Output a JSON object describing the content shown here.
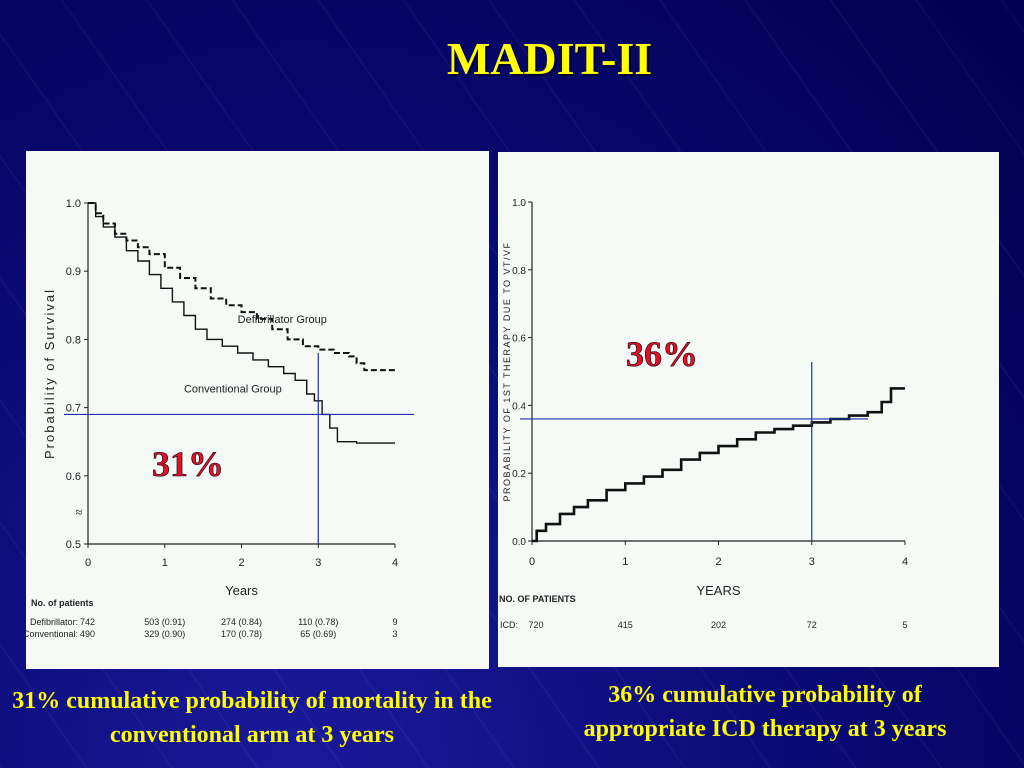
{
  "slide": {
    "title": "MADIT-II",
    "caption_left": "31% cumulative probability of mortality in the conventional arm at 3 years",
    "caption_right": "36% cumulative probability of appropriate ICD therapy at 3 years"
  },
  "colors": {
    "background": "#0a0a6e",
    "title": "#ffff00",
    "highlight_pct": "#e0102a",
    "ref_line": "#1f2fb0"
  },
  "chart_data": [
    {
      "type": "line",
      "title": "",
      "xlabel": "Years",
      "ylabel": "Probability of Survival",
      "xlim": [
        0,
        4
      ],
      "ylim": [
        0.5,
        1.0
      ],
      "x_ticks": [
        "0",
        "1",
        "2",
        "3",
        "4"
      ],
      "y_ticks": [
        "0.5",
        "0.6",
        "0.7",
        "0.8",
        "0.9",
        "1.0"
      ],
      "axis_break_symbol": "≈",
      "series": [
        {
          "name": "Defibrillator Group",
          "style": "dashed",
          "x": [
            0,
            0.1,
            0.2,
            0.35,
            0.5,
            0.65,
            0.8,
            1.0,
            1.2,
            1.4,
            1.6,
            1.8,
            2.0,
            2.2,
            2.4,
            2.6,
            2.8,
            3.0,
            3.2,
            3.4,
            3.5,
            3.6,
            3.8,
            4.0
          ],
          "y": [
            1.0,
            0.985,
            0.97,
            0.955,
            0.945,
            0.935,
            0.925,
            0.905,
            0.89,
            0.875,
            0.86,
            0.85,
            0.84,
            0.83,
            0.815,
            0.8,
            0.79,
            0.785,
            0.78,
            0.775,
            0.765,
            0.755,
            0.755,
            0.755
          ]
        },
        {
          "name": "Conventional Group",
          "style": "solid",
          "x": [
            0,
            0.1,
            0.2,
            0.35,
            0.5,
            0.65,
            0.8,
            0.95,
            1.1,
            1.25,
            1.4,
            1.55,
            1.75,
            1.95,
            2.15,
            2.35,
            2.55,
            2.7,
            2.85,
            2.95,
            3.05,
            3.15,
            3.25,
            3.5,
            4.0
          ],
          "y": [
            1.0,
            0.98,
            0.965,
            0.95,
            0.93,
            0.915,
            0.895,
            0.875,
            0.855,
            0.835,
            0.815,
            0.8,
            0.79,
            0.78,
            0.77,
            0.76,
            0.75,
            0.74,
            0.72,
            0.71,
            0.69,
            0.67,
            0.65,
            0.648,
            0.648
          ]
        }
      ],
      "reference_lines": {
        "x": 3,
        "y": 0.69
      },
      "highlight_label": "31%",
      "at_risk": {
        "title": "No. of patients",
        "rows": [
          {
            "label": "Defibrillator:",
            "values": [
              "742",
              "503  (0.91)",
              "274  (0.84)",
              "110  (0.78)",
              "9"
            ]
          },
          {
            "label": "Conventional:",
            "values": [
              "490",
              "329  (0.90)",
              "170  (0.78)",
              "65  (0.69)",
              "3"
            ]
          }
        ]
      }
    },
    {
      "type": "line",
      "title": "",
      "xlabel": "YEARS",
      "ylabel": "PROBABILITY OF 1ST THERAPY DUE TO VT/VF",
      "xlim": [
        0,
        4
      ],
      "ylim": [
        0.0,
        1.0
      ],
      "x_ticks": [
        "0",
        "1",
        "2",
        "3",
        "4"
      ],
      "y_ticks": [
        "0.0",
        "0.2",
        "0.4",
        "0.6",
        "0.8",
        "1.0"
      ],
      "series": [
        {
          "name": "ICD",
          "style": "solid",
          "x": [
            0,
            0.05,
            0.15,
            0.3,
            0.45,
            0.6,
            0.8,
            1.0,
            1.2,
            1.4,
            1.6,
            1.8,
            2.0,
            2.2,
            2.4,
            2.6,
            2.8,
            3.0,
            3.2,
            3.4,
            3.6,
            3.75,
            3.85,
            4.0
          ],
          "y": [
            0.0,
            0.03,
            0.05,
            0.08,
            0.1,
            0.12,
            0.15,
            0.17,
            0.19,
            0.21,
            0.24,
            0.26,
            0.28,
            0.3,
            0.32,
            0.33,
            0.34,
            0.35,
            0.36,
            0.37,
            0.38,
            0.41,
            0.45,
            0.45
          ]
        }
      ],
      "reference_lines": {
        "x": 3,
        "y": 0.36
      },
      "highlight_label": "36%",
      "at_risk": {
        "title": "NO. OF PATIENTS",
        "rows": [
          {
            "label": "ICD:",
            "values": [
              "720",
              "415",
              "202",
              "72",
              "5"
            ]
          }
        ]
      }
    }
  ]
}
